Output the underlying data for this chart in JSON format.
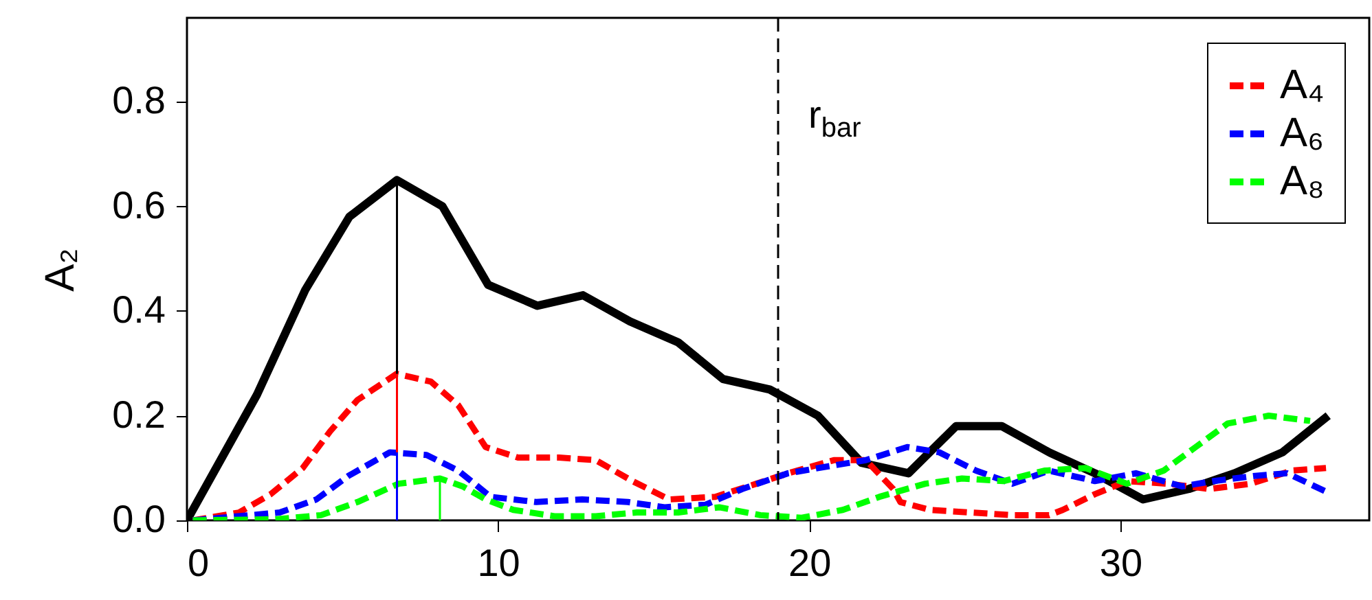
{
  "chart_data": {
    "type": "line",
    "ylabel": "A₂",
    "xlim": [
      0,
      38
    ],
    "ylim": [
      0,
      0.96
    ],
    "xticks": [
      0,
      10,
      20,
      30
    ],
    "yticks": [
      {
        "value": 0,
        "label": "0.0"
      },
      {
        "value": 0.2,
        "label": "0.2"
      },
      {
        "value": 0.4,
        "label": "0.4"
      },
      {
        "value": 0.6,
        "label": "0.6"
      },
      {
        "value": 0.8,
        "label": "0.8"
      }
    ],
    "legend": "top right",
    "ref_lines": [
      {
        "axis": "x",
        "value": 19,
        "label": "r$_{bar}$",
        "color": "#000000",
        "line_style": "dashed"
      }
    ],
    "series": [
      {
        "color": "#000000",
        "line_style": "solid",
        "x": [
          0,
          2.25,
          3.8,
          5.22,
          6.75,
          8.21,
          9.68,
          11.26,
          12.73,
          14.24,
          15.79,
          17.23,
          18.73,
          20.28,
          21.68,
          23.19,
          24.72,
          26.19,
          27.71,
          29.18,
          30.73,
          32.2,
          33.67,
          35.21,
          36.68
        ],
        "values": [
          0,
          0.24,
          0.44,
          0.58,
          0.65,
          0.6,
          0.45,
          0.41,
          0.43,
          0.38,
          0.34,
          0.27,
          0.25,
          0.2,
          0.11,
          0.09,
          0.18,
          0.18,
          0.13,
          0.09,
          0.04,
          0.06,
          0.09,
          0.13,
          0.2
        ]
      },
      {
        "name": "A₄",
        "color": "#ff0000",
        "line_style": "dashed",
        "x": [
          0.19,
          1.67,
          2.69,
          3.72,
          4.6,
          5.48,
          6.74,
          7.84,
          8.72,
          9.6,
          10.64,
          11.96,
          13.14,
          14.32,
          15.5,
          16.98,
          18.3,
          19.32,
          20.79,
          21.82,
          22.7,
          22.93,
          23.88,
          25.2,
          26.53,
          27.71,
          28.15,
          29.18,
          30.21,
          31.54,
          32.86,
          34.19,
          35.51,
          36.61
        ],
        "values": [
          0,
          0.015,
          0.05,
          0.1,
          0.17,
          0.23,
          0.28,
          0.265,
          0.22,
          0.14,
          0.12,
          0.12,
          0.115,
          0.075,
          0.04,
          0.045,
          0.07,
          0.09,
          0.115,
          0.115,
          0.06,
          0.035,
          0.02,
          0.015,
          0.01,
          0.01,
          0.02,
          0.05,
          0.075,
          0.07,
          0.06,
          0.07,
          0.095,
          0.1
        ]
      },
      {
        "name": "A₆",
        "color": "#0000ff",
        "line_style": "dashed",
        "x": [
          0.19,
          2.98,
          4.16,
          5.19,
          6.52,
          7.7,
          8.72,
          9.76,
          11.23,
          12.7,
          14.17,
          15.35,
          16.67,
          17.85,
          19.32,
          20.79,
          21.82,
          23.15,
          24.18,
          25.36,
          26.53,
          27.71,
          29.18,
          30.5,
          31.98,
          33.0,
          34.33,
          35.36,
          36.61
        ],
        "values": [
          0,
          0.015,
          0.04,
          0.085,
          0.13,
          0.125,
          0.095,
          0.045,
          0.035,
          0.04,
          0.035,
          0.025,
          0.03,
          0.06,
          0.09,
          0.105,
          0.115,
          0.14,
          0.13,
          0.095,
          0.07,
          0.095,
          0.075,
          0.09,
          0.065,
          0.075,
          0.085,
          0.09,
          0.055
        ]
      },
      {
        "name": "A₈",
        "color": "#00ff00",
        "line_style": "dashed",
        "x": [
          0.19,
          2.84,
          4.31,
          5.48,
          6.8,
          8.13,
          8.86,
          9.6,
          10.49,
          11.81,
          13.14,
          14.46,
          15.79,
          17.11,
          18.43,
          19.76,
          21.08,
          22.26,
          23.73,
          24.91,
          26.24,
          27.56,
          28.88,
          30.21,
          31.39,
          32.42,
          33.45,
          34.77,
          36.1
        ],
        "values": [
          0,
          0.002,
          0.01,
          0.035,
          0.07,
          0.08,
          0.065,
          0.04,
          0.02,
          0.008,
          0.008,
          0.015,
          0.015,
          0.025,
          0.01,
          0.005,
          0.02,
          0.045,
          0.07,
          0.08,
          0.075,
          0.095,
          0.1,
          0.07,
          0.095,
          0.14,
          0.185,
          0.2,
          0.19
        ]
      },
      {
        "type": "bar",
        "x": [
          6.75
        ],
        "values": [
          0.65
        ],
        "color": "#000000"
      },
      {
        "type": "bar",
        "x": [
          6.75
        ],
        "values": [
          0.28
        ],
        "color": "#ff0000"
      },
      {
        "type": "bar",
        "x": [
          6.75
        ],
        "values": [
          0.13
        ],
        "color": "#0000ff"
      },
      {
        "type": "bar",
        "x": [
          8.13
        ],
        "values": [
          0.08
        ],
        "color": "#00ff00"
      }
    ]
  }
}
